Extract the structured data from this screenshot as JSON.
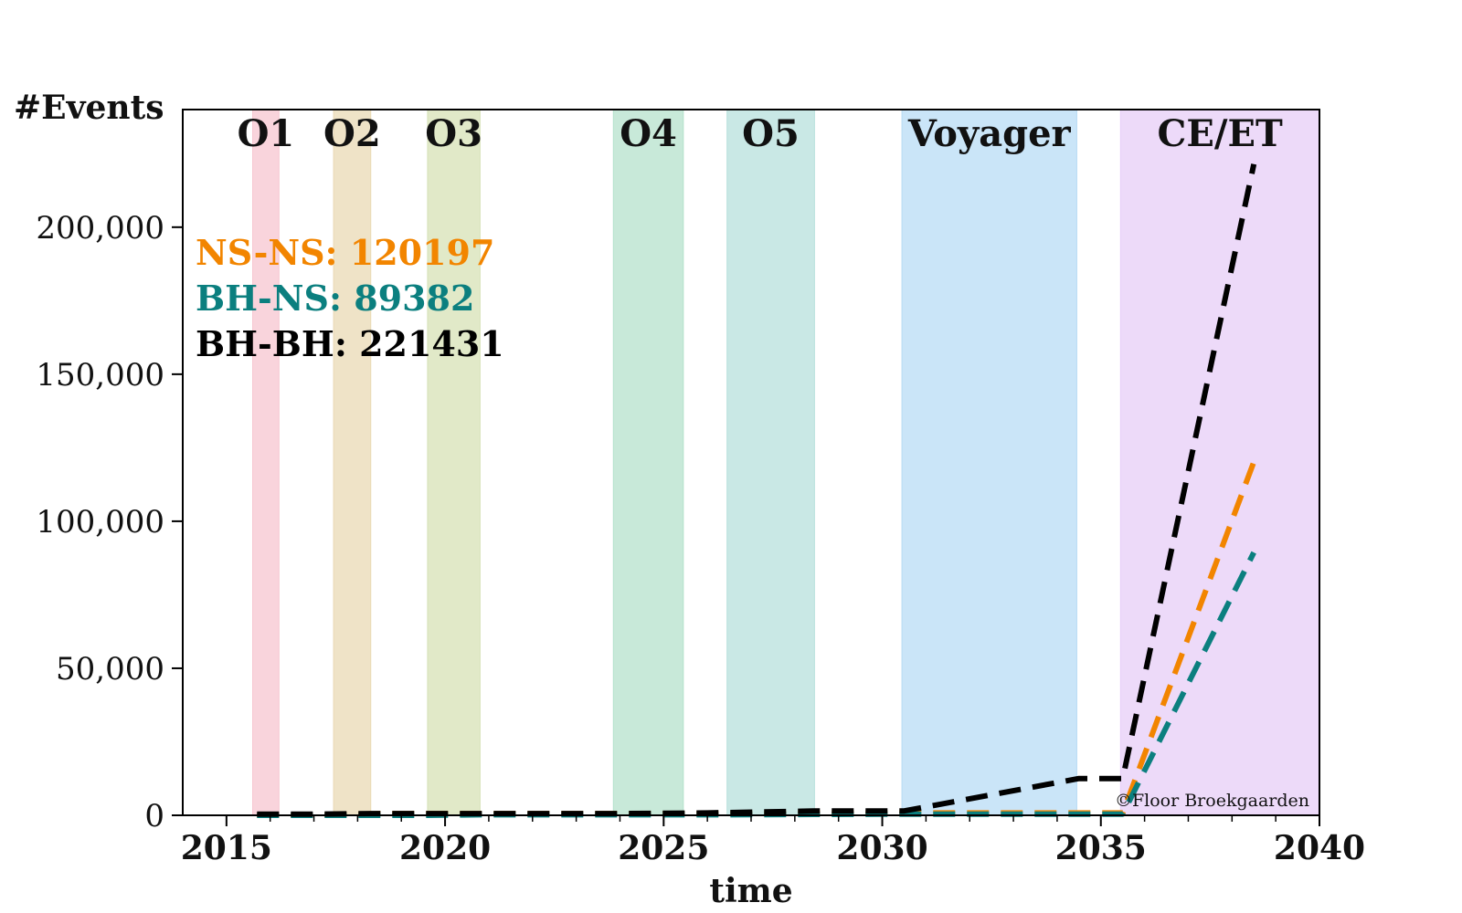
{
  "chart_data": {
    "type": "line",
    "xlabel": "time",
    "ylabel": "#Events",
    "xlim": [
      2014,
      2040
    ],
    "ylim": [
      0,
      240000
    ],
    "xticks": [
      2015,
      2020,
      2025,
      2030,
      2035,
      2040
    ],
    "xtick_labels": [
      "2015",
      "2020",
      "2025",
      "2030",
      "2035",
      "2040"
    ],
    "yticks": [
      0,
      50000,
      100000,
      150000,
      200000
    ],
    "ytick_labels": [
      "0",
      "50,000",
      "100,000",
      "150,000",
      "200,000"
    ],
    "observing_runs": [
      {
        "label": "O1",
        "start": 2015.6,
        "end": 2016.2,
        "color": "#f7c6d0"
      },
      {
        "label": "O2",
        "start": 2017.45,
        "end": 2018.3,
        "color": "#ead9b4"
      },
      {
        "label": "O3",
        "start": 2019.6,
        "end": 2020.8,
        "color": "#d7e1b6"
      },
      {
        "label": "O4",
        "start": 2023.85,
        "end": 2025.45,
        "color": "#b5e2cc"
      },
      {
        "label": "O5",
        "start": 2026.45,
        "end": 2028.45,
        "color": "#b7e0dc"
      },
      {
        "label": "Voyager",
        "start": 2030.45,
        "end": 2034.45,
        "color": "#b8dcf5"
      },
      {
        "label": "CE/ET",
        "start": 2035.45,
        "end": 2040,
        "color": "#e7cdf7"
      }
    ],
    "series": [
      {
        "name": "NS-NS",
        "color": "#f28500",
        "total_label": "NS-NS: 120197",
        "x": [
          2015.7,
          2017,
          2018.5,
          2020,
          2022,
          2024,
          2026,
          2028.5,
          2030.5,
          2034.5,
          2035.5,
          2038.5
        ],
        "y": [
          0,
          0,
          600,
          600,
          600,
          600,
          600,
          700,
          800,
          800,
          800,
          120197
        ]
      },
      {
        "name": "BH-NS",
        "color": "#0b7f7f",
        "total_label": "BH-NS: 89382",
        "x": [
          2015.7,
          2019.6,
          2020.8,
          2024,
          2026,
          2028.5,
          2030.5,
          2034.5,
          2035.5,
          2038.5
        ],
        "y": [
          0,
          0,
          200,
          200,
          200,
          300,
          400,
          400,
          400,
          89382
        ]
      },
      {
        "name": "BH-BH",
        "color": "#000000",
        "total_label": "BH-BH: 221431",
        "x": [
          2015.7,
          2017,
          2018.3,
          2020,
          2022,
          2024,
          2026,
          2028.5,
          2030.5,
          2034.5,
          2035.5,
          2038.5
        ],
        "y": [
          400,
          400,
          600,
          600,
          600,
          600,
          800,
          1500,
          1500,
          12500,
          12500,
          221431
        ]
      }
    ],
    "credit": "©Floor Broekgaarden"
  }
}
